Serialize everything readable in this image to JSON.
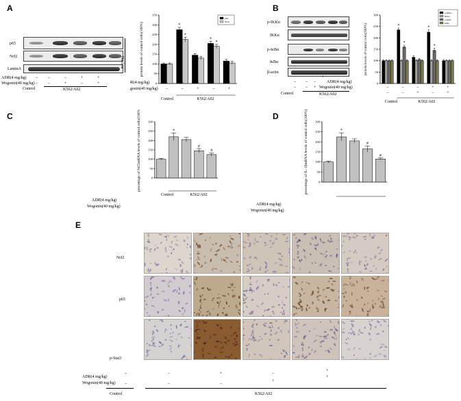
{
  "panel_labels": {
    "a": "A",
    "b": "B",
    "c": "C",
    "d": "D",
    "e": "E"
  },
  "treatments": {
    "adr_label": "ADR(4 mg/kg)",
    "adr_label_a": "ADR(4  mg/kg)",
    "wogonin_label": "Wogonin(40 mg/kg)",
    "control": "Control",
    "group": "K562/A02",
    "minus": "–",
    "plus": "+",
    "adr_signs": [
      "–",
      "–",
      "+",
      "+"
    ],
    "wogonin_signs": [
      "–",
      "+",
      "–",
      "+"
    ],
    "adr_signs_e": [
      "–",
      "–",
      "+",
      "–",
      "+"
    ],
    "wogonin_signs_e": [
      "–",
      "–",
      "–",
      "+",
      "+"
    ]
  },
  "blot_a": {
    "proteins": [
      "p65",
      "Nrf2",
      "LaminA"
    ],
    "fraction": "Nuclear"
  },
  "blot_b": {
    "proteins": [
      "p-IKKα",
      "IKKα",
      "p-IκBα",
      "IκBα",
      "β-actin"
    ]
  },
  "ihc": {
    "rows": [
      "Nrf2",
      "p65",
      "p-Stat3"
    ]
  },
  "colors": {
    "p65": "#000000",
    "nrf2": "#c8c8c8",
    "p_ikka": "#000000",
    "ikka": "#a0a0a0",
    "p_ikba": "#6b6b6b",
    "ikba": "#7a7a48",
    "single_bar": "#c0c0c0"
  },
  "chart_data": [
    {
      "type": "bar",
      "panel": "A",
      "ylabel": "protein levels of control cells(100%)",
      "ylim": [
        0,
        350
      ],
      "yticks": [
        "0",
        "50",
        "100",
        "150",
        "200",
        "250",
        "300",
        "350"
      ],
      "groups": 5,
      "series": [
        {
          "name": "p65",
          "values": [
            100,
            275,
            145,
            205,
            115
          ],
          "errors": [
            5,
            12,
            8,
            10,
            8
          ],
          "stars": [
            "",
            "*",
            "",
            "*",
            ""
          ]
        },
        {
          "name": "Nrf2",
          "values": [
            100,
            225,
            130,
            190,
            105
          ],
          "errors": [
            5,
            12,
            8,
            10,
            8
          ],
          "stars": [
            "",
            "*",
            "",
            "*",
            ""
          ]
        }
      ]
    },
    {
      "type": "bar",
      "panel": "B",
      "ylabel": "protein levels of control cells(100%)",
      "ylim": [
        0,
        300
      ],
      "yticks": [
        "0",
        "50",
        "100",
        "150",
        "200",
        "250",
        "300"
      ],
      "groups": 5,
      "series": [
        {
          "name": "p-IKKα",
          "values": [
            100,
            235,
            115,
            225,
            100
          ],
          "errors": [
            4,
            8,
            6,
            10,
            5
          ],
          "stars": [
            "",
            "*",
            "",
            "*",
            ""
          ]
        },
        {
          "name": "IKKα",
          "values": [
            100,
            100,
            100,
            100,
            100
          ],
          "errors": [
            4,
            4,
            4,
            4,
            4
          ],
          "stars": [
            "",
            "",
            "",
            "",
            ""
          ]
        },
        {
          "name": "p-IκBα",
          "values": [
            100,
            160,
            105,
            145,
            100
          ],
          "errors": [
            4,
            8,
            5,
            10,
            4
          ],
          "stars": [
            "",
            "*",
            "",
            "*",
            ""
          ]
        },
        {
          "name": "IκBα",
          "values": [
            100,
            100,
            100,
            100,
            100
          ],
          "errors": [
            4,
            4,
            4,
            4,
            4
          ],
          "stars": [
            "",
            "",
            "",
            "",
            ""
          ]
        }
      ]
    },
    {
      "type": "bar",
      "panel": "C",
      "ylabel": "precentage of Nrf2mRNA levels of control cells(100%)",
      "ylim": [
        0,
        300
      ],
      "yticks": [
        "0",
        "50",
        "100",
        "150",
        "200",
        "250",
        "300"
      ],
      "series": [
        {
          "name": "",
          "values": [
            100,
            220,
            205,
            145,
            125
          ],
          "errors": [
            5,
            20,
            12,
            10,
            8
          ],
          "stars": [
            "",
            "*",
            "",
            "#",
            "#"
          ]
        }
      ]
    },
    {
      "type": "bar",
      "panel": "D",
      "ylabel": "precentage of IL-1βmRNA levels of control cells(100%)",
      "ylim": [
        0,
        300
      ],
      "yticks": [
        "0",
        "50",
        "100",
        "150",
        "200",
        "250",
        "300"
      ],
      "series": [
        {
          "name": "",
          "values": [
            100,
            225,
            205,
            165,
            115
          ],
          "errors": [
            5,
            20,
            10,
            15,
            5
          ],
          "stars": [
            "",
            "*",
            "",
            "#",
            "#"
          ]
        }
      ]
    }
  ]
}
